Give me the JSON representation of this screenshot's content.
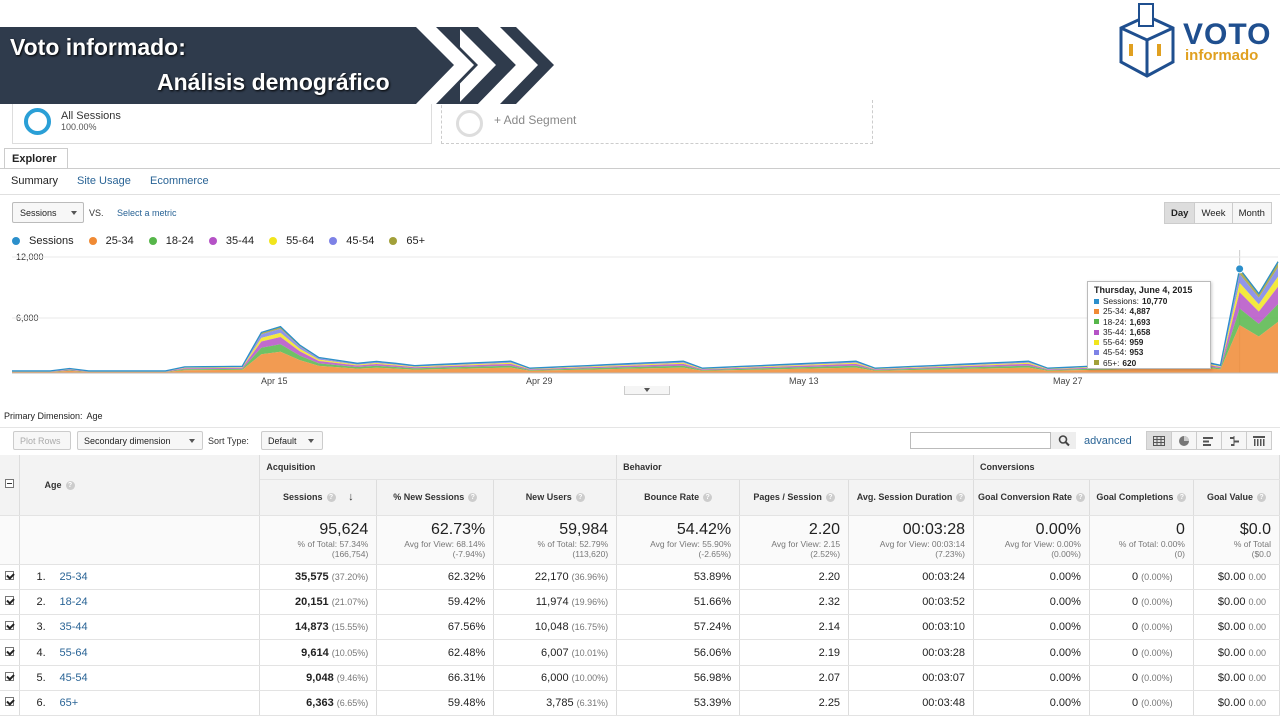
{
  "banner": {
    "line1": "Voto informado:",
    "line2": "Análisis demográfico"
  },
  "logo": {
    "word1": "VOTO",
    "word2": "informado"
  },
  "segments": {
    "all_name": "All Sessions",
    "all_pct": "100.00%",
    "add_label": "+ Add Segment"
  },
  "tabs": {
    "explorer": "Explorer",
    "summary": "Summary",
    "site_usage": "Site Usage",
    "ecommerce": "Ecommerce"
  },
  "metric": {
    "selected": "Sessions",
    "vs": "VS.",
    "select_metric": "Select a metric"
  },
  "periods": [
    "Day",
    "Week",
    "Month"
  ],
  "legend": [
    {
      "name": "Sessions",
      "color": "#2b8fcb"
    },
    {
      "name": "25-34",
      "color": "#f08a34"
    },
    {
      "name": "18-24",
      "color": "#56b64a"
    },
    {
      "name": "35-44",
      "color": "#b552c6"
    },
    {
      "name": "55-64",
      "color": "#f1e51c"
    },
    {
      "name": "45-54",
      "color": "#7d82e6"
    },
    {
      "name": "65+",
      "color": "#a2a039"
    }
  ],
  "chart_data": {
    "type": "area",
    "y_ticks": [
      "12,000",
      "6,000"
    ],
    "ylim": [
      0,
      12000
    ],
    "x_ticks": [
      "Apr 15",
      "Apr 29",
      "May 13",
      "May 27"
    ],
    "series_sessions_peak": 10770,
    "tooltip": {
      "title": "Thursday, June 4, 2015",
      "rows": [
        {
          "name": "Sessions",
          "value": "10,770",
          "color": "#2b8fcb"
        },
        {
          "name": "25-34",
          "value": "4,887",
          "color": "#f08a34"
        },
        {
          "name": "18-24",
          "value": "1,693",
          "color": "#56b64a"
        },
        {
          "name": "35-44",
          "value": "1,658",
          "color": "#b552c6"
        },
        {
          "name": "55-64",
          "value": "959",
          "color": "#f1e51c"
        },
        {
          "name": "45-54",
          "value": "953",
          "color": "#7d82e6"
        },
        {
          "name": "65+",
          "value": "620",
          "color": "#a2a039"
        }
      ]
    }
  },
  "primary_dimension": {
    "label": "Primary Dimension:",
    "value": "Age"
  },
  "toolbar": {
    "plot_rows": "Plot Rows",
    "secondary": "Secondary dimension",
    "sort_type": "Sort Type:",
    "sort_default": "Default",
    "advanced": "advanced"
  },
  "table": {
    "dim_header": "Age",
    "groups": {
      "acquisition": "Acquisition",
      "behavior": "Behavior",
      "conversions": "Conversions"
    },
    "cols": [
      "Sessions",
      "% New Sessions",
      "New Users",
      "Bounce Rate",
      "Pages / Session",
      "Avg. Session Duration",
      "Goal Conversion Rate",
      "Goal Completions",
      "Goal Value"
    ],
    "totals": [
      {
        "big": "95,624",
        "s1": "% of Total: 57.34%",
        "s2": "(166,754)"
      },
      {
        "big": "62.73%",
        "s1": "Avg for View: 68.14%",
        "s2": "(-7.94%)"
      },
      {
        "big": "59,984",
        "s1": "% of Total: 52.79%",
        "s2": "(113,620)"
      },
      {
        "big": "54.42%",
        "s1": "Avg for View: 55.90%",
        "s2": "(-2.65%)"
      },
      {
        "big": "2.20",
        "s1": "Avg for View: 2.15",
        "s2": "(2.52%)"
      },
      {
        "big": "00:03:28",
        "s1": "Avg for View: 00:03:14",
        "s2": "(7.23%)"
      },
      {
        "big": "0.00%",
        "s1": "Avg for View: 0.00%",
        "s2": "(0.00%)"
      },
      {
        "big": "0",
        "s1": "% of Total: 0.00%",
        "s2": "(0)"
      },
      {
        "big": "$0.0",
        "s1": "% of Total",
        "s2": "($0.0"
      }
    ],
    "rows": [
      {
        "n": "1.",
        "age": "25-34",
        "sessions": "35,575",
        "sessions_pct": "(37.20%)",
        "new_sess": "62.32%",
        "new_users": "22,170",
        "new_users_pct": "(36.96%)",
        "bounce": "53.89%",
        "pages": "2.20",
        "dur": "00:03:24",
        "gcr": "0.00%",
        "gc": "0",
        "gc_pct": "(0.00%)",
        "gv": "$0.00",
        "gv_pct": "0.00"
      },
      {
        "n": "2.",
        "age": "18-24",
        "sessions": "20,151",
        "sessions_pct": "(21.07%)",
        "new_sess": "59.42%",
        "new_users": "11,974",
        "new_users_pct": "(19.96%)",
        "bounce": "51.66%",
        "pages": "2.32",
        "dur": "00:03:52",
        "gcr": "0.00%",
        "gc": "0",
        "gc_pct": "(0.00%)",
        "gv": "$0.00",
        "gv_pct": "0.00"
      },
      {
        "n": "3.",
        "age": "35-44",
        "sessions": "14,873",
        "sessions_pct": "(15.55%)",
        "new_sess": "67.56%",
        "new_users": "10,048",
        "new_users_pct": "(16.75%)",
        "bounce": "57.24%",
        "pages": "2.14",
        "dur": "00:03:10",
        "gcr": "0.00%",
        "gc": "0",
        "gc_pct": "(0.00%)",
        "gv": "$0.00",
        "gv_pct": "0.00"
      },
      {
        "n": "4.",
        "age": "55-64",
        "sessions": "9,614",
        "sessions_pct": "(10.05%)",
        "new_sess": "62.48%",
        "new_users": "6,007",
        "new_users_pct": "(10.01%)",
        "bounce": "56.06%",
        "pages": "2.19",
        "dur": "00:03:28",
        "gcr": "0.00%",
        "gc": "0",
        "gc_pct": "(0.00%)",
        "gv": "$0.00",
        "gv_pct": "0.00"
      },
      {
        "n": "5.",
        "age": "45-54",
        "sessions": "9,048",
        "sessions_pct": "(9.46%)",
        "new_sess": "66.31%",
        "new_users": "6,000",
        "new_users_pct": "(10.00%)",
        "bounce": "56.98%",
        "pages": "2.07",
        "dur": "00:03:07",
        "gcr": "0.00%",
        "gc": "0",
        "gc_pct": "(0.00%)",
        "gv": "$0.00",
        "gv_pct": "0.00"
      },
      {
        "n": "6.",
        "age": "65+",
        "sessions": "6,363",
        "sessions_pct": "(6.65%)",
        "new_sess": "59.48%",
        "new_users": "3,785",
        "new_users_pct": "(6.31%)",
        "bounce": "53.39%",
        "pages": "2.25",
        "dur": "00:03:48",
        "gcr": "0.00%",
        "gc": "0",
        "gc_pct": "(0.00%)",
        "gv": "$0.00",
        "gv_pct": "0.00"
      }
    ]
  }
}
